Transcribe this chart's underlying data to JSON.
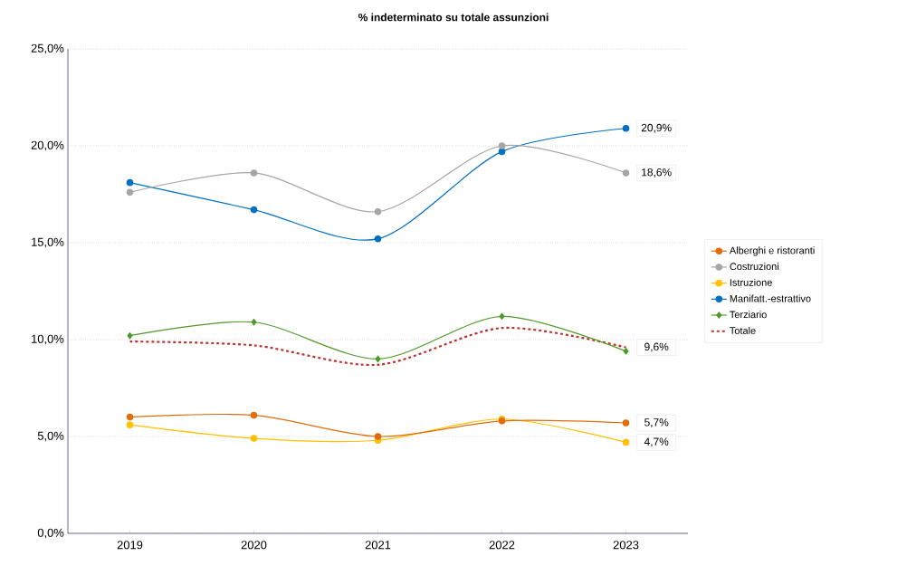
{
  "chart_data": {
    "type": "line",
    "title": "% indeterminato su totale assunzioni",
    "categories": [
      "2019",
      "2020",
      "2021",
      "2022",
      "2023"
    ],
    "series": [
      {
        "name": "Alberghi e ristoranti",
        "color": "#e36c0a",
        "marker": "circle",
        "values": [
          6.0,
          6.1,
          5.0,
          5.8,
          5.7
        ],
        "value_labels": [
          null,
          null,
          null,
          null,
          "5,7%"
        ]
      },
      {
        "name": "Costruzioni",
        "color": "#a6a6a6",
        "marker": "circle",
        "values": [
          17.6,
          18.6,
          16.6,
          20.0,
          18.6
        ],
        "value_labels": [
          null,
          null,
          null,
          null,
          "18,6%"
        ]
      },
      {
        "name": "Istruzione",
        "color": "#ffc000",
        "marker": "circle",
        "values": [
          5.6,
          4.9,
          4.8,
          5.9,
          4.7
        ],
        "value_labels": [
          null,
          null,
          null,
          null,
          "4,7%"
        ]
      },
      {
        "name": "Manifatt.-estrattivo",
        "color": "#0070c0",
        "marker": "circle",
        "values": [
          18.1,
          16.7,
          15.2,
          19.7,
          20.9
        ],
        "value_labels": [
          null,
          null,
          null,
          null,
          "20,9%"
        ]
      },
      {
        "name": "Terziario",
        "color": "#4e9a28",
        "marker": "diamond",
        "values": [
          10.2,
          10.9,
          9.0,
          11.2,
          9.4
        ]
      },
      {
        "name": "Totale",
        "color": "#c0302a",
        "marker": "none",
        "line_style": "dashed",
        "values": [
          9.9,
          9.7,
          8.7,
          10.6,
          9.6
        ],
        "value_labels": [
          null,
          null,
          null,
          null,
          "9,6%"
        ]
      }
    ],
    "ylim": [
      0,
      25
    ],
    "yticks": [
      {
        "value": 0,
        "label": "0,0%"
      },
      {
        "value": 5,
        "label": "5,0%"
      },
      {
        "value": 10,
        "label": "10,0%"
      },
      {
        "value": 15,
        "label": "15,0%"
      },
      {
        "value": 20,
        "label": "20,0%"
      },
      {
        "value": 25,
        "label": "25,0%"
      }
    ],
    "grid": "y",
    "legend": "right"
  }
}
